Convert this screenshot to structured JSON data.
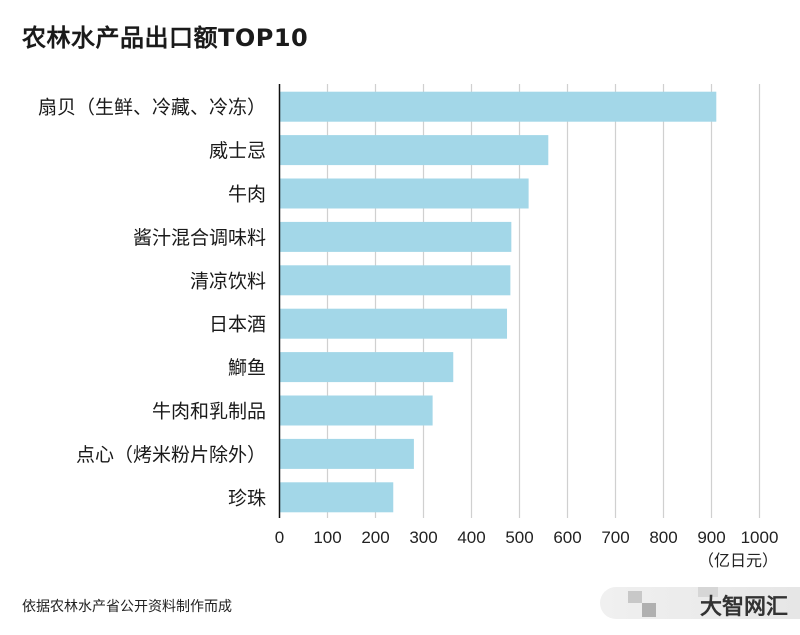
{
  "title": "农林水产品出口额TOP10",
  "source": "依据农林水产省公开资料制作而成",
  "watermark": "大智网汇",
  "chart_data": {
    "type": "bar",
    "orientation": "horizontal",
    "title": "农林水产品出口额TOP10",
    "categories": [
      "扇贝（生鲜、冷藏、冷冻）",
      "威士忌",
      "牛肉",
      "酱汁混合调味料",
      "清凉饮料",
      "日本酒",
      "鰤鱼",
      "牛肉和乳制品",
      "点心（烤米粉片除外）",
      "珍珠"
    ],
    "values": [
      910,
      560,
      519,
      483,
      481,
      474,
      362,
      319,
      280,
      237
    ],
    "xlim": [
      0,
      1000
    ],
    "xticks": [
      "0",
      "100",
      "200",
      "300",
      "400",
      "500",
      "600",
      "700",
      "800",
      "900",
      "1000"
    ],
    "xlabel": "（亿日元）",
    "ylabel": "",
    "grid": true,
    "bar_color": "#a3d7e8"
  }
}
